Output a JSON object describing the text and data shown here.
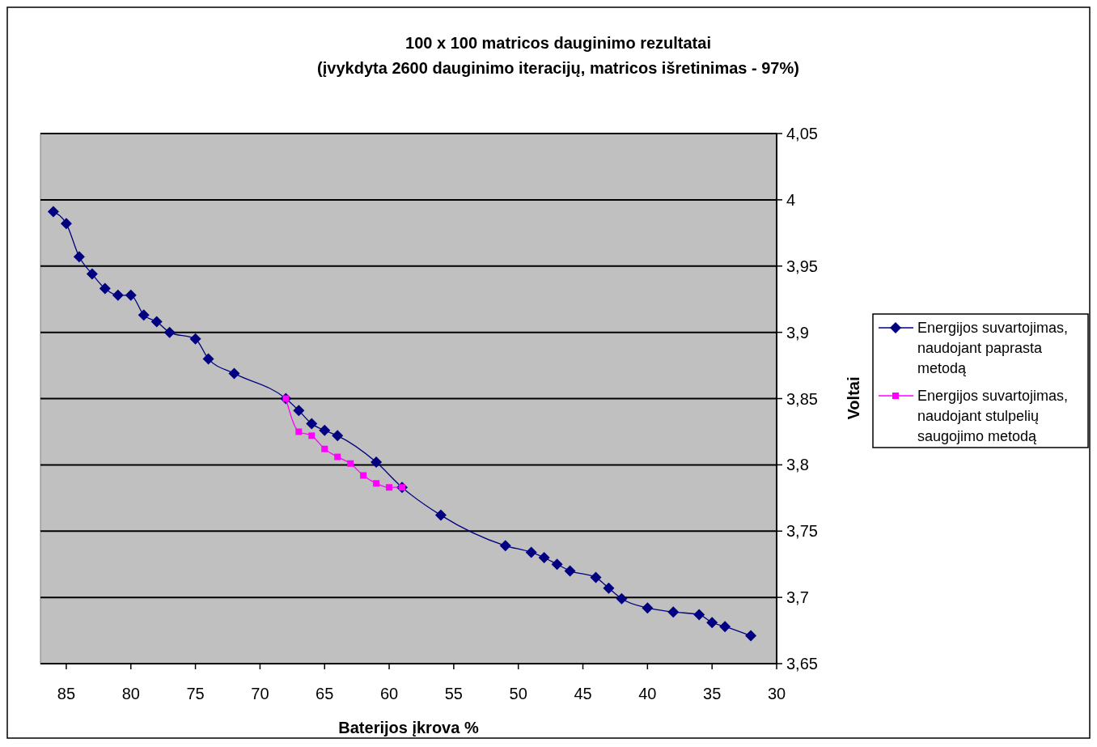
{
  "chart_data": {
    "type": "line",
    "title": "100 x 100 matricos dauginimo rezultatai\n(įvykdyta 2600 dauginimo iteracijų, matricos išretinimas - 97%)",
    "xlabel": "Baterijos įkrova %",
    "ylabel": "Voltai",
    "xlim": [
      87,
      30
    ],
    "xticks": [
      85,
      80,
      75,
      70,
      65,
      60,
      55,
      50,
      45,
      40,
      35,
      30
    ],
    "ylim": [
      3.65,
      4.05
    ],
    "yticks": [
      {
        "value": 3.65,
        "label": "3,65"
      },
      {
        "value": 3.7,
        "label": "3,7"
      },
      {
        "value": 3.75,
        "label": "3,75"
      },
      {
        "value": 3.8,
        "label": "3,8"
      },
      {
        "value": 3.85,
        "label": "3,85"
      },
      {
        "value": 3.9,
        "label": "3,9"
      },
      {
        "value": 3.95,
        "label": "3,95"
      },
      {
        "value": 4,
        "label": "4"
      },
      {
        "value": 4.05,
        "label": "4,05"
      }
    ],
    "grid": "y",
    "legend": "right",
    "series": [
      {
        "name": "Energijos suvartojimas, naudojant paprasta metodą",
        "color": "#000080",
        "marker": "diamond",
        "x": [
          86,
          85,
          84,
          83,
          82,
          81,
          80,
          79,
          78,
          77,
          75,
          74,
          72,
          68,
          67,
          66,
          65,
          64,
          61,
          59,
          56,
          51,
          49,
          48,
          47,
          46,
          44,
          43,
          42,
          40,
          38,
          36,
          35,
          34,
          32
        ],
        "values": [
          3.991,
          3.982,
          3.957,
          3.944,
          3.933,
          3.928,
          3.928,
          3.913,
          3.908,
          3.9,
          3.895,
          3.88,
          3.869,
          3.85,
          3.841,
          3.831,
          3.826,
          3.822,
          3.802,
          3.783,
          3.762,
          3.739,
          3.734,
          3.73,
          3.725,
          3.72,
          3.715,
          3.707,
          3.699,
          3.692,
          3.689,
          3.687,
          3.681,
          3.678,
          3.671
        ]
      },
      {
        "name": "Energijos suvartojimas, naudojant stulpelių saugojimo metodą",
        "color": "#ff00ff",
        "marker": "square",
        "x": [
          68,
          67,
          66,
          65,
          64,
          63,
          62,
          61,
          60,
          59
        ],
        "values": [
          3.85,
          3.825,
          3.822,
          3.812,
          3.806,
          3.801,
          3.792,
          3.786,
          3.783,
          3.783
        ]
      }
    ]
  }
}
